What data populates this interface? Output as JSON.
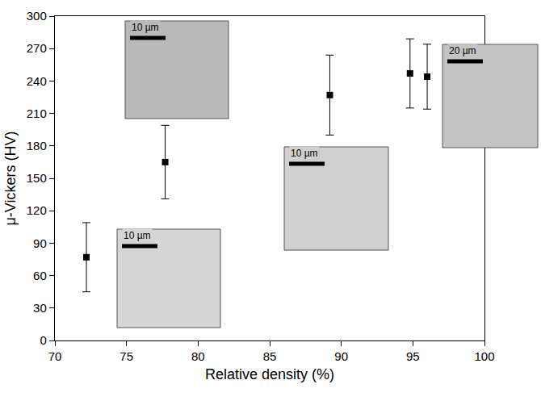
{
  "chart_data": {
    "type": "scatter",
    "x_label": "Relative density (%)",
    "y_label": "μ-Vickers (HV)",
    "x": [
      72.2,
      77.7,
      89.2,
      94.8,
      96.0
    ],
    "values": [
      77,
      165,
      227,
      247,
      244
    ],
    "errors": [
      32,
      34,
      37,
      32,
      30
    ],
    "color": "#000000",
    "marker": "square",
    "xlim": [
      70,
      100
    ],
    "xticks": [
      70,
      75,
      80,
      85,
      90,
      95,
      100
    ],
    "ylim": [
      0,
      300
    ],
    "yticks": [
      0,
      30,
      60,
      90,
      120,
      150,
      180,
      210,
      240,
      270,
      300
    ],
    "grid": false,
    "annotations": [
      "10 µm",
      "10 µm",
      "10 µm",
      "20 µm"
    ]
  }
}
